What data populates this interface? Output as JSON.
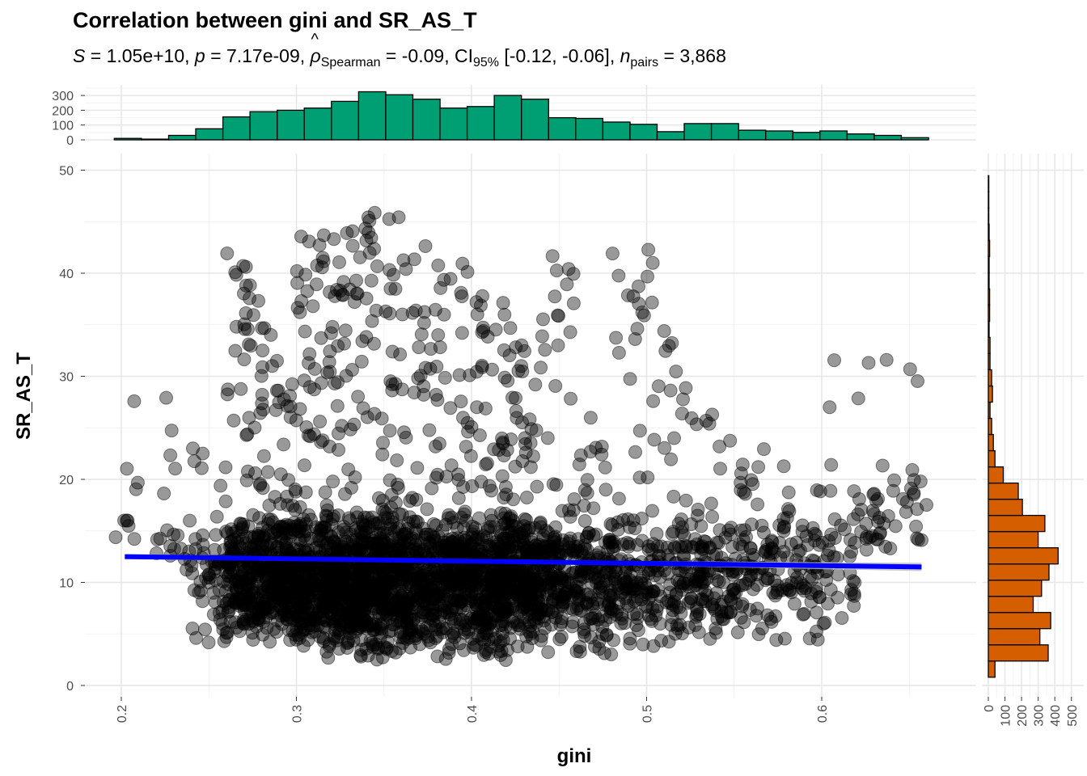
{
  "title": "Correlation between gini and SR_AS_T",
  "subtitle": {
    "S_label": "S",
    "S": "1.05e+10",
    "p_label": "p",
    "p": "7.17e-09",
    "rho_symbol": "ρ",
    "rho_sub": "Spearman",
    "rho": "-0.09",
    "ci_label": "CI",
    "ci_sub": "95%",
    "ci": "[-0.12, -0.06]",
    "n_label": "n",
    "n_sub": "pairs",
    "n": "3,868"
  },
  "colors": {
    "points": "#000000",
    "fit_line": "#0000ff",
    "ci_band": "#bdbdbd",
    "top_hist": "#009e73",
    "right_hist": "#d55e00",
    "grid_major": "#e6e6e6",
    "grid_minor": "#f2f2f2",
    "axis_text": "#4d4d4d"
  },
  "chart_data": [
    {
      "type": "scatter",
      "xlabel": "gini",
      "ylabel": "SR_AS_T",
      "xlim": [
        0.175,
        0.675
      ],
      "ylim": [
        -0.5,
        51
      ],
      "x_ticks": [
        "0.2",
        "0.3",
        "0.4",
        "0.5",
        "0.6"
      ],
      "y_ticks": [
        "0",
        "10",
        "20",
        "30",
        "40",
        "50"
      ],
      "grid": true,
      "n_points": 3868,
      "point_color": "#000000",
      "point_alpha": 0.4,
      "fit": {
        "method": "linear",
        "x": [
          0.202,
          0.657
        ],
        "y": [
          12.5,
          11.5
        ],
        "color": "#0000ff"
      },
      "point_clusters": [
        {
          "x": 0.2,
          "y_range": [
            14,
            16
          ],
          "count": 6
        },
        {
          "x": 0.21,
          "y_range": [
            18,
            29
          ],
          "count": 4
        },
        {
          "x": 0.23,
          "y_range": [
            10,
            28
          ],
          "count": 20
        },
        {
          "x": 0.25,
          "y_range": [
            3.5,
            28
          ],
          "count": 60
        },
        {
          "x": 0.27,
          "y_range": [
            4,
            42
          ],
          "count": 220
        },
        {
          "x": 0.29,
          "y_range": [
            4,
            35
          ],
          "count": 280
        },
        {
          "x": 0.31,
          "y_range": [
            2.5,
            44
          ],
          "count": 300
        },
        {
          "x": 0.33,
          "y_range": [
            2.5,
            46
          ],
          "count": 350
        },
        {
          "x": 0.35,
          "y_range": [
            2,
            47
          ],
          "count": 320
        },
        {
          "x": 0.37,
          "y_range": [
            3,
            43
          ],
          "count": 260
        },
        {
          "x": 0.39,
          "y_range": [
            2.5,
            41
          ],
          "count": 240
        },
        {
          "x": 0.41,
          "y_range": [
            2,
            38
          ],
          "count": 300
        },
        {
          "x": 0.43,
          "y_range": [
            3,
            35
          ],
          "count": 270
        },
        {
          "x": 0.45,
          "y_range": [
            3,
            43
          ],
          "count": 160
        },
        {
          "x": 0.47,
          "y_range": [
            3,
            26
          ],
          "count": 140
        },
        {
          "x": 0.49,
          "y_range": [
            3.5,
            49
          ],
          "count": 110
        },
        {
          "x": 0.51,
          "y_range": [
            3,
            46
          ],
          "count": 100
        },
        {
          "x": 0.53,
          "y_range": [
            4,
            31
          ],
          "count": 100
        },
        {
          "x": 0.55,
          "y_range": [
            4,
            26
          ],
          "count": 80
        },
        {
          "x": 0.57,
          "y_range": [
            4,
            23
          ],
          "count": 60
        },
        {
          "x": 0.59,
          "y_range": [
            4,
            22
          ],
          "count": 60
        },
        {
          "x": 0.61,
          "y_range": [
            6,
            32
          ],
          "count": 40
        },
        {
          "x": 0.63,
          "y_range": [
            13,
            32
          ],
          "count": 30
        },
        {
          "x": 0.65,
          "y_range": [
            14,
            32
          ],
          "count": 20
        }
      ]
    },
    {
      "type": "bar",
      "title": "",
      "xlabel": "gini",
      "ylabel": "",
      "bin_width": 0.0155,
      "x_start": 0.196,
      "values": [
        10,
        5,
        30,
        75,
        155,
        190,
        200,
        215,
        260,
        325,
        305,
        275,
        215,
        225,
        300,
        275,
        150,
        145,
        120,
        105,
        55,
        110,
        110,
        65,
        60,
        50,
        60,
        40,
        30,
        15
      ],
      "ylim": [
        0,
        330
      ],
      "y_ticks": [
        "0",
        "100",
        "200",
        "300"
      ],
      "color": "#009e73"
    },
    {
      "type": "bar",
      "orientation": "horizontal",
      "xlabel": "",
      "ylabel": "SR_AS_T",
      "bin_width": 1.57,
      "y_start": 0.8,
      "values": [
        40,
        360,
        310,
        375,
        270,
        320,
        365,
        420,
        300,
        340,
        205,
        180,
        90,
        40,
        30,
        20,
        10,
        25,
        20,
        10,
        10,
        5,
        8,
        8,
        5,
        5,
        8,
        5,
        3,
        3,
        3
      ],
      "xlim": [
        0,
        500
      ],
      "x_ticks": [
        "0",
        "100",
        "200",
        "300",
        "400",
        "500"
      ],
      "color": "#d55e00"
    }
  ]
}
